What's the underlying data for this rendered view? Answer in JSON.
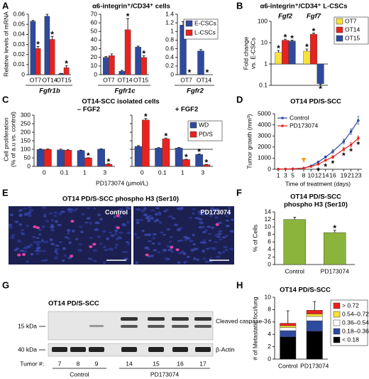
{
  "chart_data": [
    {
      "label": "A",
      "type": "bar",
      "title": "α6-integrin⁺/CD34⁺ cells",
      "ylabel": "Relative levels of mRNA",
      "series": [
        {
          "name": "E-CSCs",
          "color": "#2e4a9e"
        },
        {
          "name": "L-CSCs",
          "color": "#e8231f"
        }
      ],
      "legend": "upper right",
      "subplots": [
        {
          "xlabel": "Fgfr1b",
          "categories": [
            "OT7",
            "OT14",
            "OT15"
          ],
          "ylim": [
            0,
            0.06
          ],
          "yticks": [
            0,
            0.01,
            0.02,
            0.03,
            0.04,
            0.05,
            0.06
          ],
          "series": [
            {
              "values": [
                0.053,
                0.058,
                0.001
              ],
              "errors": [
                0.001,
                0.002,
                0.0003
              ]
            },
            {
              "values": [
                0.026,
                0.035,
                0.007
              ],
              "errors": [
                0.002,
                0.003,
                0.002
              ],
              "stars": [
                "*",
                "*",
                "*"
              ]
            }
          ]
        },
        {
          "xlabel": "Fgfr1c",
          "categories": [
            "OT7",
            "OT14",
            "OT15"
          ],
          "ylim": [
            0,
            70
          ],
          "yticks": [
            0,
            10,
            20,
            30,
            40,
            50,
            60,
            70
          ],
          "series": [
            {
              "values": [
                20,
                4,
                32
              ],
              "errors": [
                1,
                1,
                1
              ]
            },
            {
              "values": [
                22,
                52,
                20
              ],
              "errors": [
                2,
                13,
                2
              ],
              "stars": [
                null,
                "*",
                "*"
              ]
            }
          ]
        },
        {
          "xlabel": "Fgfr2",
          "categories": [
            "OT7",
            "OT14"
          ],
          "ylim": [
            0,
            1.4
          ],
          "yticks": [
            0,
            0.2,
            0.4,
            0.6,
            0.8,
            1,
            1.2,
            1.4
          ],
          "series": [
            {
              "values": [
                1.15,
                0.55
              ],
              "errors": [
                0.08,
                0.03
              ]
            },
            {
              "values": [
                0,
                0
              ],
              "stars": [
                "*",
                "*"
              ]
            }
          ]
        }
      ]
    },
    {
      "label": "B",
      "type": "bar",
      "title": "α6-integrin⁺/CD34⁺ L-CSCs",
      "ylabel": [
        "Fold change",
        "vs. E-CSCs"
      ],
      "log_scale": true,
      "categories": [
        "Fgf2",
        "Fgf7"
      ],
      "ylim": [
        0.1,
        100
      ],
      "yticks": [
        0.1,
        1,
        10,
        100
      ],
      "legend": "upper right",
      "series": [
        {
          "name": "OT7",
          "color": "#f7e13a",
          "values": [
            3.5,
            4
          ],
          "errors": [
            0.8,
            1
          ],
          "stars": [
            "*",
            "*"
          ]
        },
        {
          "name": "OT14",
          "color": "#e8231f",
          "values": [
            13,
            25
          ],
          "errors": [
            1.5,
            3
          ],
          "stars": [
            "*",
            "*"
          ]
        },
        {
          "name": "OT15",
          "color": "#2e4a9e",
          "values": [
            12,
            0.12
          ],
          "errors": [
            1,
            0.01
          ],
          "stars": [
            "*",
            "*"
          ]
        }
      ]
    },
    {
      "label": "C",
      "type": "bar",
      "title": "OT14-SCC isolated cells",
      "ylabel": [
        "Cell proliferation",
        "(% of a.u vs. control)"
      ],
      "xlabel": "PD173074 (μmol/L)",
      "ylim": [
        0,
        300
      ],
      "yticks": [
        0,
        50,
        100,
        150,
        200,
        250,
        300
      ],
      "legend": "upper right",
      "series": [
        {
          "name": "WD",
          "color": "#2e4a9e"
        },
        {
          "name": "PD/S",
          "color": "#e8231f"
        }
      ],
      "subplots": [
        {
          "title": "– FGF2",
          "categories": [
            0,
            0.1,
            1,
            3
          ],
          "series": [
            {
              "values": [
                100,
                97,
                93,
                101
              ],
              "errors": [
                3,
                4,
                2,
                2
              ]
            },
            {
              "values": [
                100,
                95,
                50,
                13
              ],
              "errors": [
                2,
                3,
                1,
                3
              ],
              "stars": [
                null,
                null,
                "*",
                "*"
              ]
            }
          ]
        },
        {
          "title": "+ FGF2",
          "hline": 100,
          "categories": [
            0,
            0.1,
            1,
            3
          ],
          "series": [
            {
              "values": [
                117,
                107,
                108,
                70
              ],
              "errors": [
                4,
                3,
                3,
                3
              ],
              "stars": [
                null,
                null,
                null,
                "*"
              ]
            },
            {
              "values": [
                272,
                162,
                40,
                10
              ],
              "errors": [
                8,
                4,
                2,
                2
              ],
              "stars": [
                "*",
                "*",
                "*",
                "*"
              ]
            }
          ]
        }
      ]
    },
    {
      "label": "D",
      "type": "line",
      "title": "OT14 PD/S-SCC",
      "ylabel": "Tumor growth (mm³)",
      "xlabel": "Time of treatment (days)",
      "x": [
        1,
        3,
        5,
        8,
        10,
        12,
        14,
        16,
        19,
        21,
        23
      ],
      "xlim": [
        0,
        24
      ],
      "xticks": [
        1,
        3,
        5,
        8,
        10,
        12,
        14,
        16,
        19,
        21,
        23
      ],
      "ylim": [
        0,
        5000
      ],
      "yticks": [
        0,
        1000,
        2000,
        3000,
        4000,
        5000
      ],
      "arrow_at": 8,
      "legend": "upper left",
      "series": [
        {
          "name": "Control",
          "color": "#2e4a9e",
          "values": [
            10,
            20,
            40,
            100,
            300,
            650,
            1100,
            1600,
            2500,
            3400,
            4400
          ],
          "errors": [
            5,
            5,
            10,
            20,
            50,
            80,
            100,
            150,
            200,
            250,
            350
          ]
        },
        {
          "name": "PD173074",
          "color": "#e8231f",
          "values": [
            10,
            20,
            40,
            100,
            250,
            450,
            800,
            1100,
            1800,
            2200,
            2800
          ],
          "errors": [
            5,
            5,
            10,
            20,
            40,
            60,
            80,
            120,
            150,
            200,
            200
          ],
          "stars": [
            null,
            null,
            null,
            null,
            null,
            "*",
            "*",
            "*",
            "*",
            "*",
            "*"
          ]
        }
      ]
    },
    {
      "label": "F",
      "type": "bar",
      "title": [
        "OT14 PD/S-SCC",
        "phospho H3 (Ser10)"
      ],
      "ylabel": "% of Cells",
      "categories": [
        "Control",
        "PD173074"
      ],
      "values": [
        12,
        8.5
      ],
      "errors": [
        0.6,
        0.6
      ],
      "stars": [
        null,
        "*"
      ],
      "color": "#8ab43c",
      "ylim": [
        0,
        14
      ],
      "yticks": [
        0,
        2,
        4,
        6,
        8,
        10,
        12,
        14
      ]
    },
    {
      "label": "H",
      "type": "stacked_bar",
      "title": "OT14 PD/S-SCC",
      "ylabel": "# of Metastatic foci/lung",
      "categories": [
        "Control",
        "PD173074"
      ],
      "ylim": [
        0,
        10
      ],
      "yticks": [
        0,
        2,
        4,
        6,
        8,
        10
      ],
      "legend": "right",
      "series": [
        {
          "name": "< 0.18",
          "color": "#000000",
          "values": [
            3.6,
            4.5
          ]
        },
        {
          "name": "0.18–0.36",
          "color": "#2e4a9e",
          "values": [
            1.0,
            1.7
          ]
        },
        {
          "name": "0.36–0.54",
          "color": "#ffffff",
          "values": [
            0.5,
            0.7
          ]
        },
        {
          "name": "0.54–0.72",
          "color": "#f7e13a",
          "values": [
            0.3,
            0.4
          ]
        },
        {
          "name": "> 0.72",
          "color": "#e8231f",
          "values": [
            0.4,
            0.6
          ],
          "errors": [
            2.0,
            1.4
          ]
        }
      ]
    }
  ],
  "figures": {
    "E": {
      "label": "E",
      "title": "OT14 PD/S-SCC phospho H3 (Ser10)",
      "images": [
        "Control",
        "PD173074"
      ]
    },
    "G": {
      "label": "G",
      "title": "OT14 PD/S-SCC",
      "markers": [
        "15 kDa",
        "40 kDa"
      ],
      "bands": [
        "Cleaved caspase-3",
        "β-Actin"
      ],
      "lanes_label": "Tumor #:",
      "lanes": [
        7,
        8,
        9,
        14,
        15,
        16,
        17
      ],
      "groups": [
        "Control",
        "PD173074"
      ]
    }
  }
}
